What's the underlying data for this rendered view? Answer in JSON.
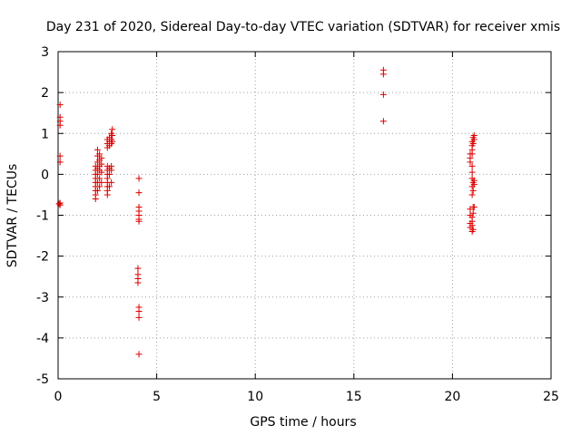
{
  "colors": {
    "series": "#dd0000",
    "axis": "#000000",
    "grid": "#a0a0a0",
    "background": "#ffffff"
  },
  "chart_data": {
    "type": "scatter",
    "title": "Day 231 of 2020, Sidereal Day-to-day VTEC variation (SDTVAR) for receiver xmis",
    "xlabel": "GPS time / hours",
    "ylabel": "SDTVAR / TECUs",
    "xlim": [
      0,
      25
    ],
    "ylim": [
      -5,
      3
    ],
    "xticks": [
      0,
      5,
      10,
      15,
      20,
      25
    ],
    "yticks": [
      -5,
      -4,
      -3,
      -2,
      -1,
      0,
      1,
      2,
      3
    ],
    "xtick_labels": [
      "0",
      "5",
      "10",
      "15",
      "20",
      "25"
    ],
    "ytick_labels": [
      "-5",
      "-4",
      "-3",
      "-2",
      "-1",
      "0",
      "1",
      "2",
      "3"
    ],
    "grid": true,
    "marker": "+",
    "series": [
      {
        "name": "SDTVAR",
        "points": [
          [
            0.1,
            1.7
          ],
          [
            0.1,
            1.4
          ],
          [
            0.1,
            1.3
          ],
          [
            0.1,
            1.2
          ],
          [
            0.1,
            0.45
          ],
          [
            0.1,
            0.3
          ],
          [
            0.1,
            -0.7
          ],
          [
            0.1,
            -0.75
          ],
          [
            0.05,
            -0.72
          ],
          [
            1.9,
            -0.6
          ],
          [
            1.9,
            -0.5
          ],
          [
            1.9,
            -0.4
          ],
          [
            1.9,
            -0.3
          ],
          [
            1.9,
            -0.2
          ],
          [
            1.9,
            -0.1
          ],
          [
            1.9,
            0.0
          ],
          [
            1.9,
            0.1
          ],
          [
            1.9,
            0.2
          ],
          [
            2.0,
            -0.4
          ],
          [
            2.0,
            -0.2
          ],
          [
            2.0,
            0.0
          ],
          [
            2.0,
            0.15
          ],
          [
            2.0,
            0.3
          ],
          [
            2.0,
            0.45
          ],
          [
            2.0,
            0.6
          ],
          [
            2.1,
            -0.3
          ],
          [
            2.1,
            -0.1
          ],
          [
            2.1,
            0.1
          ],
          [
            2.1,
            0.2
          ],
          [
            2.1,
            0.35
          ],
          [
            2.1,
            0.5
          ],
          [
            2.2,
            -0.2
          ],
          [
            2.2,
            0.05
          ],
          [
            2.2,
            0.25
          ],
          [
            2.2,
            0.4
          ],
          [
            2.5,
            -0.5
          ],
          [
            2.5,
            -0.4
          ],
          [
            2.5,
            -0.3
          ],
          [
            2.5,
            -0.2
          ],
          [
            2.5,
            -0.1
          ],
          [
            2.5,
            0.0
          ],
          [
            2.5,
            0.1
          ],
          [
            2.5,
            0.2
          ],
          [
            2.5,
            0.65
          ],
          [
            2.5,
            0.75
          ],
          [
            2.5,
            0.85
          ],
          [
            2.6,
            -0.3
          ],
          [
            2.6,
            0.0
          ],
          [
            2.6,
            0.15
          ],
          [
            2.6,
            0.7
          ],
          [
            2.6,
            0.8
          ],
          [
            2.6,
            0.9
          ],
          [
            2.7,
            -0.2
          ],
          [
            2.7,
            0.1
          ],
          [
            2.7,
            0.2
          ],
          [
            2.7,
            0.75
          ],
          [
            2.7,
            0.85
          ],
          [
            2.7,
            1.0
          ],
          [
            2.75,
            0.8
          ],
          [
            2.75,
            0.95
          ],
          [
            2.75,
            1.1
          ],
          [
            4.1,
            -0.1
          ],
          [
            4.1,
            -0.45
          ],
          [
            4.1,
            -0.8
          ],
          [
            4.1,
            -0.9
          ],
          [
            4.1,
            -1.0
          ],
          [
            4.1,
            -1.1
          ],
          [
            4.1,
            -1.15
          ],
          [
            4.05,
            -2.3
          ],
          [
            4.05,
            -2.45
          ],
          [
            4.05,
            -2.55
          ],
          [
            4.05,
            -2.65
          ],
          [
            4.1,
            -3.25
          ],
          [
            4.1,
            -3.35
          ],
          [
            4.1,
            -3.5
          ],
          [
            4.1,
            -4.4
          ],
          [
            16.5,
            2.55
          ],
          [
            16.5,
            2.45
          ],
          [
            16.5,
            1.95
          ],
          [
            16.5,
            1.3
          ],
          [
            20.9,
            0.4
          ],
          [
            20.9,
            0.5
          ],
          [
            20.9,
            0.3
          ],
          [
            20.9,
            -0.85
          ],
          [
            20.9,
            -1.0
          ],
          [
            20.9,
            -1.2
          ],
          [
            20.9,
            -1.3
          ],
          [
            21.0,
            0.8
          ],
          [
            21.0,
            0.7
          ],
          [
            21.0,
            0.6
          ],
          [
            21.0,
            0.5
          ],
          [
            21.0,
            0.2
          ],
          [
            21.0,
            0.05
          ],
          [
            21.0,
            -0.1
          ],
          [
            21.0,
            -0.3
          ],
          [
            21.0,
            -0.5
          ],
          [
            21.0,
            -1.05
          ],
          [
            21.0,
            -1.15
          ],
          [
            21.0,
            -1.25
          ],
          [
            21.0,
            -1.4
          ],
          [
            21.05,
            0.9
          ],
          [
            21.05,
            0.75
          ],
          [
            21.05,
            -0.2
          ],
          [
            21.05,
            -0.4
          ],
          [
            21.05,
            -0.8
          ],
          [
            21.05,
            -0.95
          ],
          [
            21.05,
            -1.35
          ],
          [
            21.1,
            0.95
          ],
          [
            21.1,
            0.85
          ],
          [
            21.1,
            -0.15
          ],
          [
            21.1,
            -0.25
          ],
          [
            21.1,
            -0.8
          ]
        ]
      }
    ]
  }
}
